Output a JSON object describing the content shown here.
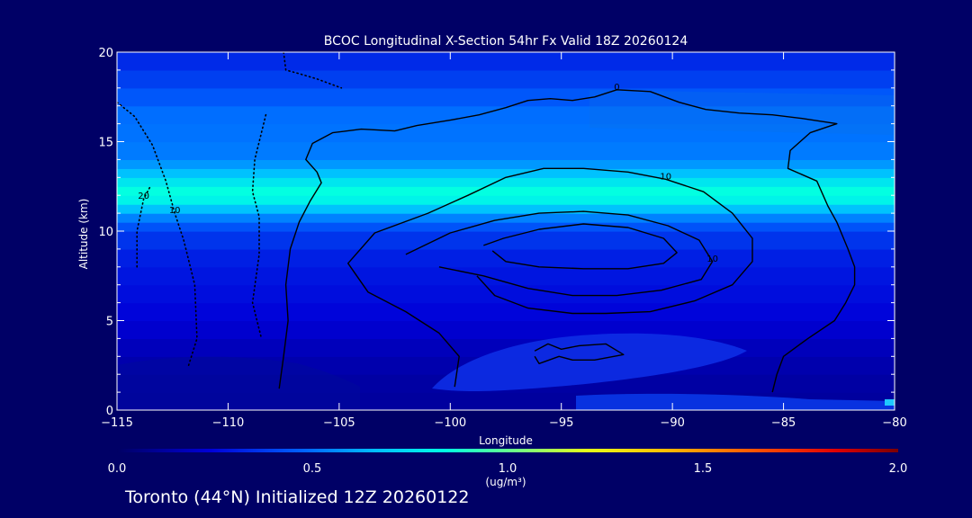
{
  "chart_data": {
    "type": "heatmap",
    "title": "BCOC Longitudinal X-Section 54hr  Fx Valid 18Z 20260124",
    "xlabel": "Longitude",
    "ylabel": "Altitude (km)",
    "xlim": [
      -115,
      -80
    ],
    "ylim": [
      0,
      20
    ],
    "x_ticks": [
      -115,
      -110,
      -105,
      -100,
      -95,
      -90,
      -85,
      -80
    ],
    "x_tick_labels": [
      "−115",
      "−110",
      "−105",
      "−100",
      "−95",
      "−90",
      "−85",
      "−80"
    ],
    "y_ticks": [
      0,
      5,
      10,
      15,
      20
    ],
    "y_tick_labels": [
      "0",
      "5",
      "10",
      "15",
      "20"
    ],
    "colorbar": {
      "min": 0.0,
      "max": 2.0,
      "ticks": [
        0.0,
        0.5,
        1.0,
        1.5,
        2.0
      ],
      "tick_labels": [
        "0.0",
        "0.5",
        "1.0",
        "1.5",
        "2.0"
      ],
      "unit_label": "(ug/m³)"
    },
    "field_profile": {
      "altitude_km": [
        0,
        1,
        2,
        3,
        4,
        5,
        6,
        7,
        8,
        9,
        10,
        10.5,
        11,
        11.5,
        12,
        12.5,
        13,
        13.5,
        14,
        15,
        16,
        17,
        18,
        19,
        20
      ],
      "concentration": [
        0.12,
        0.12,
        0.14,
        0.16,
        0.2,
        0.24,
        0.26,
        0.28,
        0.3,
        0.33,
        0.4,
        0.48,
        0.6,
        0.75,
        0.87,
        0.82,
        0.72,
        0.62,
        0.55,
        0.5,
        0.52,
        0.48,
        0.42,
        0.36,
        0.32
      ]
    },
    "contours": [
      {
        "level_label": "0",
        "style": "solid",
        "points": [
          [
            -107.7,
            1.2
          ],
          [
            -107.5,
            3
          ],
          [
            -107.3,
            5
          ],
          [
            -107.4,
            7
          ],
          [
            -107.2,
            9
          ],
          [
            -106.8,
            10.5
          ],
          [
            -106.3,
            11.7
          ],
          [
            -105.8,
            12.7
          ],
          [
            -106,
            13.3
          ],
          [
            -106.5,
            14
          ],
          [
            -106.2,
            14.9
          ],
          [
            -105.3,
            15.5
          ],
          [
            -104,
            15.7
          ],
          [
            -102.5,
            15.6
          ],
          [
            -101.5,
            15.9
          ],
          [
            -100,
            16.2
          ],
          [
            -98.7,
            16.5
          ],
          [
            -97.5,
            16.9
          ],
          [
            -96.5,
            17.3
          ],
          [
            -95.5,
            17.4
          ],
          [
            -94.5,
            17.3
          ],
          [
            -93.5,
            17.5
          ],
          [
            -92.5,
            17.9
          ],
          [
            -91,
            17.8
          ],
          [
            -89.7,
            17.2
          ],
          [
            -88.5,
            16.8
          ],
          [
            -87,
            16.6
          ],
          [
            -85.5,
            16.5
          ],
          [
            -84.2,
            16.3
          ],
          [
            -82.6,
            16.0
          ],
          [
            -83.8,
            15.5
          ],
          [
            -84.7,
            14.5
          ],
          [
            -84.8,
            13.5
          ],
          [
            -83.5,
            12.8
          ],
          [
            -83,
            11.4
          ],
          [
            -82.6,
            10.5
          ],
          [
            -82.1,
            9
          ],
          [
            -81.8,
            8
          ],
          [
            -81.8,
            7
          ],
          [
            -82.2,
            6
          ],
          [
            -82.7,
            5
          ],
          [
            -83.9,
            4
          ],
          [
            -85,
            3
          ],
          [
            -85.3,
            2
          ],
          [
            -85.5,
            1
          ]
        ]
      },
      {
        "level_label": "10",
        "style": "solid",
        "points": [
          [
            -99.8,
            1.3
          ],
          [
            -99.6,
            3
          ],
          [
            -100.5,
            4.3
          ],
          [
            -102,
            5.5
          ],
          [
            -103.7,
            6.6
          ],
          [
            -104.6,
            8.2
          ],
          [
            -103.4,
            9.9
          ],
          [
            -101,
            11
          ],
          [
            -99.2,
            12
          ],
          [
            -97.5,
            13
          ],
          [
            -95.8,
            13.5
          ],
          [
            -94,
            13.5
          ],
          [
            -92,
            13.3
          ],
          [
            -90.3,
            12.9
          ],
          [
            -88.6,
            12.2
          ],
          [
            -87.3,
            11
          ],
          [
            -86.4,
            9.6
          ],
          [
            -86.4,
            8.3
          ],
          [
            -87.3,
            7
          ],
          [
            -89,
            6.1
          ],
          [
            -91,
            5.5
          ],
          [
            -93,
            5.4
          ],
          [
            -94.5,
            5.4
          ],
          [
            -96.5,
            5.7
          ],
          [
            -98,
            6.4
          ],
          [
            -98.8,
            7.5
          ]
        ]
      },
      {
        "level_label": "10",
        "style": "solid",
        "points": [
          [
            -102,
            8.7
          ],
          [
            -100,
            9.9
          ],
          [
            -98,
            10.6
          ],
          [
            -96,
            11
          ],
          [
            -94,
            11.1
          ],
          [
            -92,
            10.9
          ],
          [
            -90.2,
            10.3
          ],
          [
            -88.8,
            9.5
          ],
          [
            -88.2,
            8.3
          ],
          [
            -88.7,
            7.3
          ],
          [
            -90.5,
            6.7
          ],
          [
            -92.5,
            6.4
          ],
          [
            -94.5,
            6.4
          ],
          [
            -96.5,
            6.8
          ],
          [
            -98.5,
            7.5
          ],
          [
            -100.5,
            8
          ]
        ]
      },
      {
        "level_label": "",
        "style": "solid",
        "points": [
          [
            -98.5,
            9.2
          ],
          [
            -97.6,
            9.6
          ],
          [
            -96,
            10.1
          ],
          [
            -94,
            10.4
          ],
          [
            -92,
            10.2
          ],
          [
            -90.4,
            9.6
          ],
          [
            -89.8,
            8.8
          ],
          [
            -90.4,
            8.2
          ],
          [
            -92,
            7.9
          ],
          [
            -94,
            7.9
          ],
          [
            -96,
            8
          ],
          [
            -97.5,
            8.3
          ],
          [
            -98.1,
            8.9
          ]
        ]
      },
      {
        "level_label": "",
        "style": "solid",
        "points": [
          [
            -96.2,
            3.3
          ],
          [
            -95.6,
            3.7
          ],
          [
            -95,
            3.4
          ],
          [
            -94.2,
            3.6
          ],
          [
            -93,
            3.7
          ],
          [
            -92.2,
            3.1
          ],
          [
            -93.5,
            2.8
          ],
          [
            -94.5,
            2.8
          ],
          [
            -95.1,
            3.0
          ],
          [
            -96,
            2.6
          ],
          [
            -96.2,
            3.0
          ]
        ]
      },
      {
        "level_label": "10",
        "style": "dotted",
        "points": [
          [
            -115,
            17.2
          ],
          [
            -114.2,
            16.4
          ],
          [
            -113.4,
            14.8
          ],
          [
            -112.8,
            12.8
          ],
          [
            -112.4,
            11
          ],
          [
            -112,
            9.5
          ],
          [
            -111.5,
            7
          ],
          [
            -111.4,
            4
          ],
          [
            -111.8,
            2.4
          ]
        ]
      },
      {
        "level_label": "",
        "style": "dotted",
        "points": [
          [
            -108.3,
            16.5
          ],
          [
            -108.8,
            14
          ],
          [
            -108.9,
            12.2
          ],
          [
            -108.6,
            10.8
          ],
          [
            -108.6,
            8.7
          ],
          [
            -108.9,
            6
          ],
          [
            -108.5,
            4
          ]
        ]
      },
      {
        "level_label": "",
        "style": "dotted",
        "points": [
          [
            -107.5,
            20
          ],
          [
            -107.4,
            19
          ],
          [
            -106.8,
            18.8
          ],
          [
            -106,
            18.5
          ],
          [
            -104.9,
            18
          ]
        ]
      },
      {
        "level_label": "20",
        "style": "dotted",
        "points": [
          [
            -114.1,
            8
          ],
          [
            -114.1,
            10
          ],
          [
            -113.8,
            11.8
          ],
          [
            -113.5,
            12.5
          ]
        ]
      }
    ]
  },
  "footer_text": "Toronto (44°N) Initialized 12Z 20260122",
  "colors": {
    "background": "#000066",
    "text": "#ffffff",
    "contour": "#000000"
  }
}
